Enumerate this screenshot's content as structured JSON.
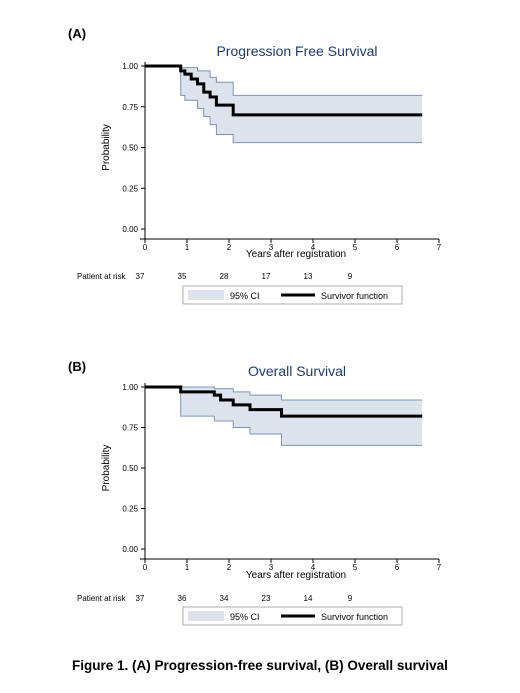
{
  "caption": "Figure 1. (A) Progression-free survival, (B) Overall survival",
  "colors": {
    "ci_fill": "#dde3ec",
    "ci_stroke": "#7e94b3",
    "survivor_line": "#000000",
    "title": "#1f3a6b"
  },
  "chart_data": [
    {
      "type": "line",
      "panel_label": "(A)",
      "title": "Progression Free Survival",
      "xlabel": "Years after registration",
      "ylabel": "Probability",
      "xlim": [
        0,
        7
      ],
      "ylim": [
        0,
        1
      ],
      "x_ticks": [
        "0",
        "1",
        "2",
        "3",
        "4",
        "5",
        "6",
        "7"
      ],
      "y_ticks": [
        "0.00",
        "0.25",
        "0.50",
        "0.75",
        "1.00"
      ],
      "grid": false,
      "legend": [
        "95% CI",
        "Survivor function"
      ],
      "legend_position": "bottom",
      "at_risk_label": "Patient at risk",
      "at_risk_x": [
        0,
        1,
        2,
        3,
        4,
        5
      ],
      "at_risk": [
        "37",
        "35",
        "28",
        "17",
        "13",
        "9"
      ],
      "series": [
        {
          "name": "Survivor function",
          "x": [
            0,
            0.85,
            0.95,
            1.1,
            1.25,
            1.4,
            1.55,
            1.7,
            2.1,
            6.6
          ],
          "y": [
            1.0,
            0.97,
            0.95,
            0.92,
            0.89,
            0.84,
            0.81,
            0.76,
            0.7,
            0.7
          ]
        },
        {
          "name": "95% CI upper",
          "x": [
            0,
            0.85,
            1.25,
            1.55,
            1.7,
            2.1,
            6.6
          ],
          "y": [
            1.0,
            0.99,
            0.97,
            0.93,
            0.9,
            0.82,
            0.82
          ]
        },
        {
          "name": "95% CI lower",
          "x": [
            0,
            0.85,
            0.95,
            1.25,
            1.4,
            1.55,
            1.7,
            2.1,
            6.6
          ],
          "y": [
            1.0,
            0.82,
            0.79,
            0.74,
            0.69,
            0.64,
            0.58,
            0.53,
            0.53
          ]
        }
      ]
    },
    {
      "type": "line",
      "panel_label": "(B)",
      "title": "Overall Survival",
      "xlabel": "Years after registration",
      "ylabel": "Probability",
      "xlim": [
        0,
        7
      ],
      "ylim": [
        0,
        1
      ],
      "x_ticks": [
        "0",
        "1",
        "2",
        "3",
        "4",
        "5",
        "6",
        "7"
      ],
      "y_ticks": [
        "0.00",
        "0.25",
        "0.50",
        "0.75",
        "1.00"
      ],
      "grid": false,
      "legend": [
        "95% CI",
        "Survivor function"
      ],
      "legend_position": "bottom",
      "at_risk_label": "Patient at risk",
      "at_risk_x": [
        0,
        1,
        2,
        3,
        4,
        5
      ],
      "at_risk": [
        "37",
        "36",
        "34",
        "23",
        "14",
        "9"
      ],
      "series": [
        {
          "name": "Survivor function",
          "x": [
            0,
            0.85,
            1.65,
            1.8,
            2.1,
            2.5,
            3.25,
            6.6
          ],
          "y": [
            1.0,
            0.97,
            0.95,
            0.92,
            0.89,
            0.86,
            0.82,
            0.82
          ]
        },
        {
          "name": "95% CI upper",
          "x": [
            0,
            0.85,
            1.65,
            2.1,
            2.5,
            3.25,
            6.6
          ],
          "y": [
            1.0,
            1.0,
            0.99,
            0.97,
            0.95,
            0.92,
            0.92
          ]
        },
        {
          "name": "95% CI lower",
          "x": [
            0,
            0.85,
            1.65,
            2.1,
            2.5,
            3.25,
            6.6
          ],
          "y": [
            1.0,
            0.82,
            0.79,
            0.75,
            0.71,
            0.64,
            0.64
          ]
        }
      ]
    }
  ]
}
